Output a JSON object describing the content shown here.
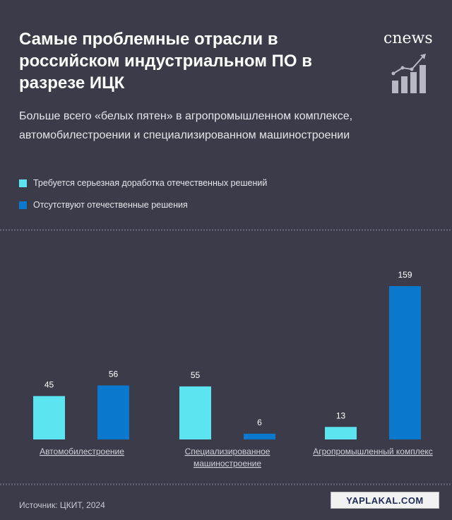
{
  "header": {
    "title": "Самые проблемные отрасли в российском индустриальном ПО в разрезе ИЦК",
    "subtitle": "Больше всего «белых пятен» в агропромышленном комплексе, автомобилестроении и специализированном машиностроении",
    "logo": "cnews"
  },
  "legend": [
    {
      "label": "Требуется серьезная доработка отечественных решений",
      "color": "#5ce4f0"
    },
    {
      "label": "Отсутствуют отечественные решения",
      "color": "#0a78cc"
    }
  ],
  "chart_data": {
    "type": "bar",
    "categories": [
      [
        "Автомобилестроение"
      ],
      [
        "Специализированное",
        "машиностроение"
      ],
      [
        "Агропромышленный комплекс"
      ]
    ],
    "series": [
      {
        "name": "Требуется серьезная доработка отечественных решений",
        "values": [
          45,
          55,
          13
        ],
        "color": "#5ce4f0"
      },
      {
        "name": "Отсутствуют отечественные решения",
        "values": [
          56,
          6,
          159
        ],
        "color": "#0a78cc"
      }
    ],
    "ylim": [
      0,
      159
    ],
    "grid": false,
    "legend_position": "top-left"
  },
  "footer": {
    "source": "Источник: ЦКИТ, 2024",
    "watermark": "YAPLAKAL.COM"
  }
}
